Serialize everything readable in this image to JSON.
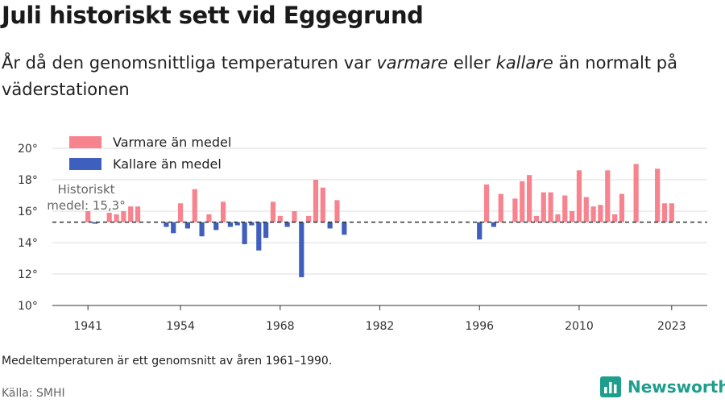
{
  "header": {
    "title": "Juli historiskt sett vid Eggegrund",
    "subtitle_parts": [
      {
        "text": "År då den genomsnittliga temperaturen var ",
        "italic": false
      },
      {
        "text": "varmare",
        "italic": true
      },
      {
        "text": " eller ",
        "italic": false
      },
      {
        "text": "kallare",
        "italic": true
      },
      {
        "text": " än normalt på väderstationen",
        "italic": false
      }
    ]
  },
  "footer": {
    "note": "Medeltemperaturen är ett genomsnitt av åren 1961–1990.",
    "source": "Källa: SMHI",
    "brand": "Newsworthy"
  },
  "colors": {
    "warm": "#f7838f",
    "cold": "#3f5fbf",
    "brand": "#1e9e8c"
  },
  "chart_data": {
    "type": "bar",
    "reference": {
      "value": 15.3,
      "label_lines": [
        "Historiskt",
        "medel: 15,3°"
      ]
    },
    "legend": [
      {
        "key": "warm",
        "label": "Varmare än medel"
      },
      {
        "key": "cold",
        "label": "Kallare än medel"
      }
    ],
    "y_ticks": [
      {
        "value": 10,
        "label": "10°"
      },
      {
        "value": 12,
        "label": "12°"
      },
      {
        "value": 14,
        "label": "14°"
      },
      {
        "value": 16,
        "label": "16°"
      },
      {
        "value": 18,
        "label": "18°"
      },
      {
        "value": 20,
        "label": "20°"
      }
    ],
    "x_ticks": [
      {
        "value": 1941,
        "label": "1941"
      },
      {
        "value": 1954,
        "label": "1954"
      },
      {
        "value": 1968,
        "label": "1968"
      },
      {
        "value": 1982,
        "label": "1982"
      },
      {
        "value": 1996,
        "label": "1996"
      },
      {
        "value": 2010,
        "label": "2010"
      },
      {
        "value": 2023,
        "label": "2023"
      }
    ],
    "xlim": [
      1936,
      2028
    ],
    "ylim": [
      10,
      20
    ],
    "grid": true,
    "data": [
      {
        "year": 1941,
        "value": 16.0
      },
      {
        "year": 1942,
        "value": 15.2
      },
      {
        "year": 1944,
        "value": 15.9
      },
      {
        "year": 1945,
        "value": 15.8
      },
      {
        "year": 1946,
        "value": 16.0
      },
      {
        "year": 1947,
        "value": 16.3
      },
      {
        "year": 1948,
        "value": 16.3
      },
      {
        "year": 1952,
        "value": 15.0
      },
      {
        "year": 1953,
        "value": 14.6
      },
      {
        "year": 1954,
        "value": 16.5
      },
      {
        "year": 1955,
        "value": 14.9
      },
      {
        "year": 1956,
        "value": 17.4
      },
      {
        "year": 1957,
        "value": 14.4
      },
      {
        "year": 1958,
        "value": 15.8
      },
      {
        "year": 1959,
        "value": 14.8
      },
      {
        "year": 1960,
        "value": 16.6
      },
      {
        "year": 1961,
        "value": 15.0
      },
      {
        "year": 1962,
        "value": 15.1
      },
      {
        "year": 1963,
        "value": 13.9
      },
      {
        "year": 1964,
        "value": 15.1
      },
      {
        "year": 1965,
        "value": 13.5
      },
      {
        "year": 1966,
        "value": 14.3
      },
      {
        "year": 1967,
        "value": 16.6
      },
      {
        "year": 1968,
        "value": 15.7
      },
      {
        "year": 1969,
        "value": 15.0
      },
      {
        "year": 1970,
        "value": 16.0
      },
      {
        "year": 1971,
        "value": 11.8
      },
      {
        "year": 1972,
        "value": 15.7
      },
      {
        "year": 1973,
        "value": 18.0
      },
      {
        "year": 1974,
        "value": 17.5
      },
      {
        "year": 1975,
        "value": 14.9
      },
      {
        "year": 1976,
        "value": 16.7
      },
      {
        "year": 1977,
        "value": 14.5
      },
      {
        "year": 1996,
        "value": 14.2
      },
      {
        "year": 1997,
        "value": 17.7
      },
      {
        "year": 1998,
        "value": 15.0
      },
      {
        "year": 1999,
        "value": 17.1
      },
      {
        "year": 2001,
        "value": 16.8
      },
      {
        "year": 2002,
        "value": 17.9
      },
      {
        "year": 2003,
        "value": 18.3
      },
      {
        "year": 2004,
        "value": 15.7
      },
      {
        "year": 2005,
        "value": 17.2
      },
      {
        "year": 2006,
        "value": 17.2
      },
      {
        "year": 2007,
        "value": 15.8
      },
      {
        "year": 2008,
        "value": 17.0
      },
      {
        "year": 2009,
        "value": 16.0
      },
      {
        "year": 2010,
        "value": 18.6
      },
      {
        "year": 2011,
        "value": 16.9
      },
      {
        "year": 2012,
        "value": 16.3
      },
      {
        "year": 2013,
        "value": 16.4
      },
      {
        "year": 2014,
        "value": 18.6
      },
      {
        "year": 2015,
        "value": 15.8
      },
      {
        "year": 2016,
        "value": 17.1
      },
      {
        "year": 2018,
        "value": 19.0
      },
      {
        "year": 2021,
        "value": 18.7
      },
      {
        "year": 2022,
        "value": 16.5
      },
      {
        "year": 2023,
        "value": 16.5
      }
    ]
  }
}
